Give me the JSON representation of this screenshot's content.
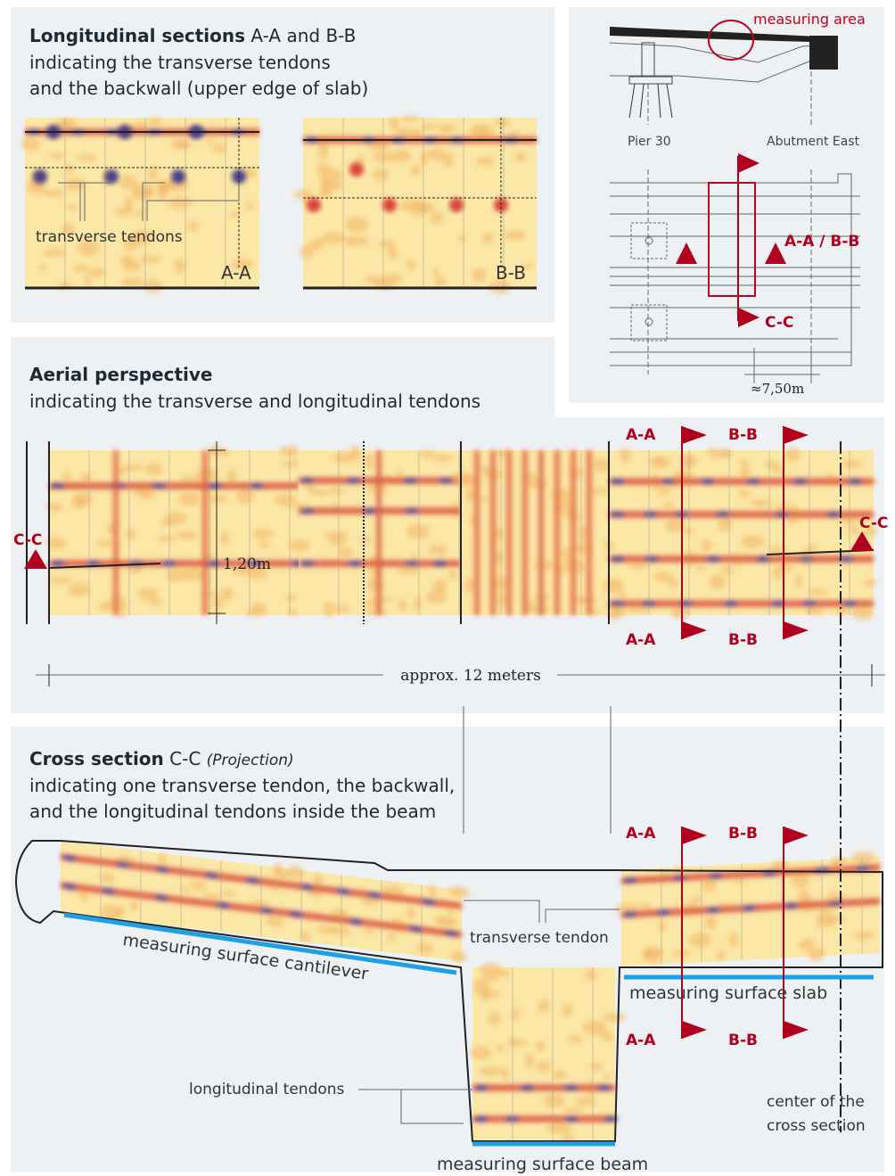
{
  "longitudinal": {
    "title_bold": "Longitudinal sections",
    "title_rest": "A-A and B-B",
    "lines": [
      "indicating the transverse tendons",
      "and the backwall (upper edge of slab)"
    ],
    "label_tendons": "transverse tendons",
    "panel_a": "A-A",
    "panel_b": "B-B"
  },
  "plan": {
    "measuring_area": "measuring area",
    "pier": "Pier 30",
    "abutment": "Abutment East",
    "aa_bb": "A-A / B-B",
    "cc": "C-C",
    "distance": "≈7,50m"
  },
  "aerial": {
    "title": "Aerial perspective",
    "subtitle": "indicating the transverse and longitudinal tendons",
    "cc_left": "C-C",
    "cc_right": "C-C",
    "height": "1,20m",
    "aa_top": "A-A",
    "bb_top": "B-B",
    "aa_bottom": "A-A",
    "bb_bottom": "B-B",
    "length": "approx. 12 meters"
  },
  "cross": {
    "title_bold": "Cross section",
    "title_rest": "C-C",
    "projection": "(Projection)",
    "lines": [
      "indicating one transverse tendon, the backwall,",
      "and the longitudinal tendons inside the beam"
    ],
    "aa_top": "A-A",
    "bb_top": "B-B",
    "aa_bottom": "A-A",
    "bb_bottom": "B-B",
    "transverse_tendon": "transverse tendon",
    "longitudinal_tendons": "longitudinal tendons",
    "surface_cantilever": "measuring surface cantilever",
    "surface_slab": "measuring surface slab",
    "surface_beam": "measuring surface beam",
    "center": [
      "center of the",
      "cross section"
    ]
  }
}
